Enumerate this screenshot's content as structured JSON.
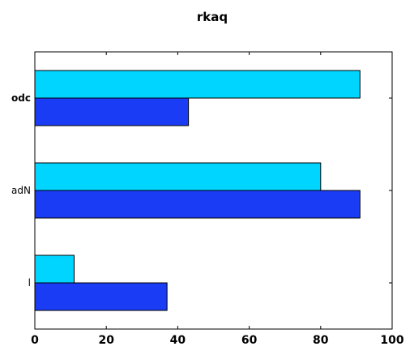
{
  "chart_data": {
    "type": "bar",
    "orientation": "horizontal",
    "title": "rkaq",
    "xlabel": "",
    "ylabel": "",
    "categories": [
      "l",
      "adN",
      "odc"
    ],
    "bold_categories": [
      "odc"
    ],
    "series": [
      {
        "values": [
          11,
          80,
          91
        ],
        "color": "#00d5ff"
      },
      {
        "values": [
          37,
          91,
          43
        ],
        "color": "#1a3cf5"
      }
    ],
    "xlim": [
      0,
      100
    ],
    "xticks": [
      0,
      20,
      40,
      60,
      80,
      100
    ],
    "grid": false,
    "legend": "none"
  }
}
